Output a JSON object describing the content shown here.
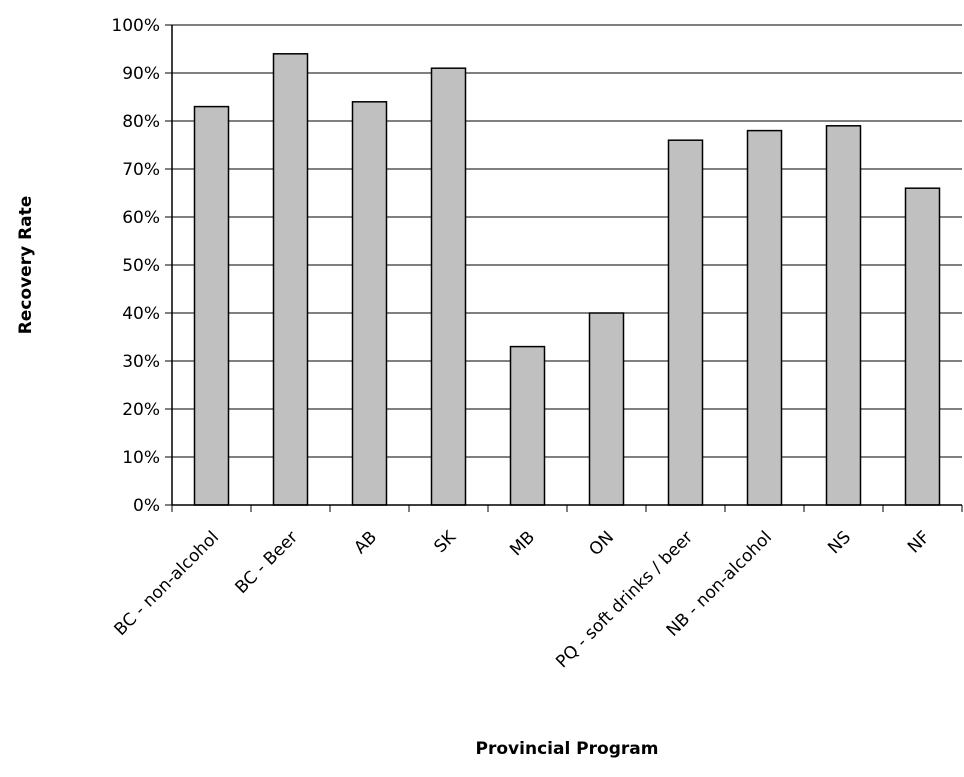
{
  "chart_data": {
    "type": "bar",
    "title": "",
    "xlabel": "Provincial Program",
    "ylabel": "Recovery Rate",
    "ylim": [
      0,
      100
    ],
    "y_tick_step": 10,
    "y_tick_format": "percent",
    "grid": true,
    "legend": "none",
    "categories": [
      "BC - non-alcohol",
      "BC - Beer",
      "AB",
      "SK",
      "MB",
      "ON",
      "PQ - soft drinks / beer",
      "NB - non-alcohol",
      "NS",
      "NF"
    ],
    "values": [
      83,
      94,
      84,
      91,
      33,
      40,
      76,
      78,
      79,
      66
    ],
    "y_tick_labels": [
      "0%",
      "10%",
      "20%",
      "30%",
      "40%",
      "50%",
      "60%",
      "70%",
      "80%",
      "90%",
      "100%"
    ],
    "colors": {
      "bar_fill": "#c0c0c0",
      "bar_stroke": "#000000",
      "grid": "#000000",
      "axis": "#000000"
    }
  }
}
